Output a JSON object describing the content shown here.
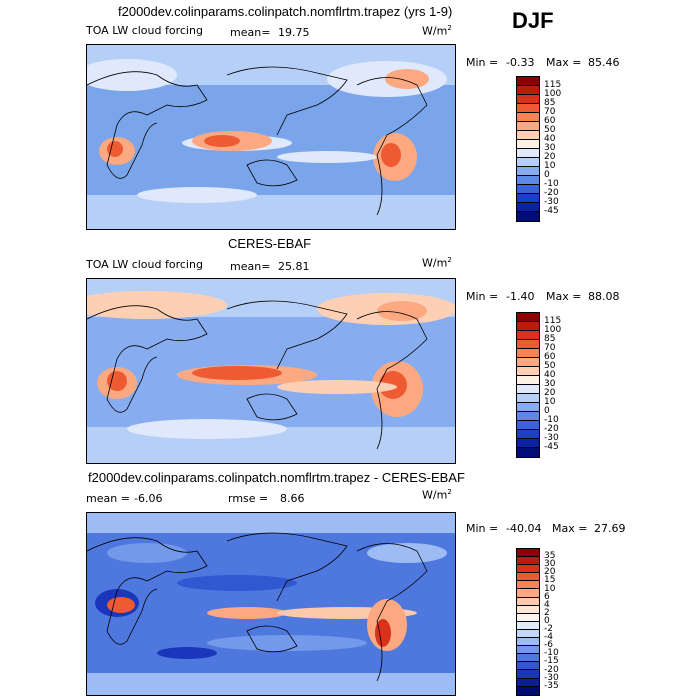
{
  "season": "DJF",
  "panels": [
    {
      "title": "f2000dev.colinparams.colinpatch.nomflrtm.trapez (yrs 1-9)",
      "left_label": "TOA LW cloud forcing",
      "stat_label": "mean=",
      "stat_value": "19.75",
      "units": "W/m",
      "units_exp": "2",
      "min_label": "Min =",
      "min_value": "-0.33",
      "max_label": "Max =",
      "max_value": "85.46",
      "levels": [
        "115",
        "100",
        "85",
        "70",
        "60",
        "50",
        "40",
        "30",
        "20",
        "10",
        "0",
        "-10",
        "-20",
        "-30",
        "-45"
      ],
      "colors": [
        "#8b0000",
        "#b81d0b",
        "#d8321b",
        "#ee5a32",
        "#f78459",
        "#fca982",
        "#fdd0b5",
        "#fdf1e6",
        "#dfe9fb",
        "#b6cff7",
        "#87adf0",
        "#5d88e6",
        "#3a63d9",
        "#1c3fc7",
        "#0d21a3",
        "#000d75"
      ]
    },
    {
      "title": "CERES-EBAF",
      "left_label": "TOA LW cloud forcing",
      "stat_label": "mean=",
      "stat_value": "25.81",
      "units": "W/m",
      "units_exp": "2",
      "min_label": "Min =",
      "min_value": "-1.40",
      "max_label": "Max =",
      "max_value": "88.08",
      "levels": [
        "115",
        "100",
        "85",
        "70",
        "60",
        "50",
        "40",
        "30",
        "20",
        "10",
        "0",
        "-10",
        "-20",
        "-30",
        "-45"
      ],
      "colors": [
        "#8b0000",
        "#b81d0b",
        "#d8321b",
        "#ee5a32",
        "#f78459",
        "#fca982",
        "#fdd0b5",
        "#fdf1e6",
        "#dfe9fb",
        "#b6cff7",
        "#87adf0",
        "#5d88e6",
        "#3a63d9",
        "#1c3fc7",
        "#0d21a3",
        "#000d75"
      ]
    },
    {
      "title": "f2000dev.colinparams.colinpatch.nomflrtm.trapez - CERES-EBAF",
      "left_label": "mean =",
      "left_value": "-6.06",
      "stat_label": "rmse =",
      "stat_value": "8.66",
      "units": "W/m",
      "units_exp": "2",
      "min_label": "Min =",
      "min_value": "-40.04",
      "max_label": "Max =",
      "max_value": "27.69",
      "levels": [
        "35",
        "30",
        "20",
        "15",
        "10",
        "6",
        "4",
        "2",
        "0",
        "-2",
        "-4",
        "-6",
        "-10",
        "-15",
        "-20",
        "-30",
        "-35"
      ],
      "colors": [
        "#8b0000",
        "#b81d0b",
        "#d8321b",
        "#ee5a32",
        "#f78459",
        "#fca982",
        "#fdc9ab",
        "#fde6d7",
        "#fbf5ef",
        "#e2ecfb",
        "#c3d7f8",
        "#9dbcf3",
        "#7399ea",
        "#4f78df",
        "#3158d1",
        "#1a37bc",
        "#0c1d99",
        "#000c70"
      ]
    }
  ]
}
